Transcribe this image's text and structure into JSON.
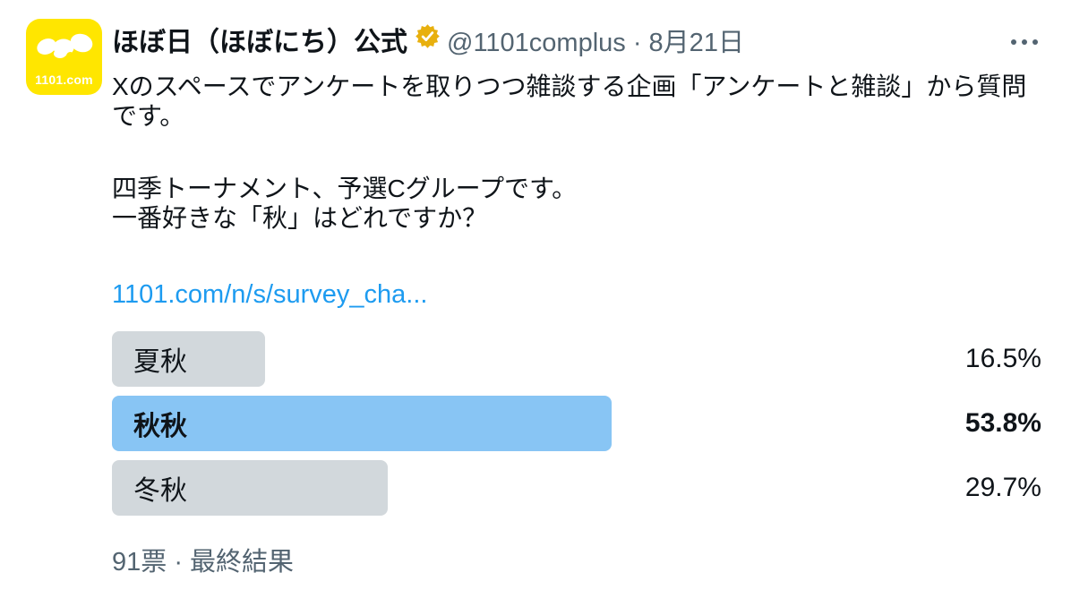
{
  "colors": {
    "background": "#ffffff",
    "text_primary": "#0f1419",
    "text_secondary": "#536471",
    "link_blue": "#1d9bf0",
    "poll_winner_blue": "#88C5F4",
    "poll_bar_gray": "#D2D8DC",
    "avatar_yellow": "#FFE600",
    "badge_gold": "#E8B00E"
  },
  "avatar": {
    "caption": "1101.com"
  },
  "header": {
    "display_name": "ほぼ日（ほぼにち）公式",
    "badge_icon": "gold-verified-icon",
    "handle_and_date": "@1101complus · 8月21日"
  },
  "tweet": {
    "paragraph1": "Xのスペースでアンケートを取りつつ雑談する企画「アンケートと雑談」から質問です。",
    "paragraph2_line1": "四季トーナメント、予選Cグループです。",
    "paragraph2_line2": "一番好きな「秋」はどれですか？",
    "link_text": "1101.com/n/s/survey_cha..."
  },
  "poll": {
    "options": [
      {
        "label": "夏秋",
        "percent_label": "16.5%",
        "percent_value": 16.5,
        "winner": false
      },
      {
        "label": "秋秋",
        "percent_label": "53.8%",
        "percent_value": 53.8,
        "winner": true
      },
      {
        "label": "冬秋",
        "percent_label": "29.7%",
        "percent_value": 29.7,
        "winner": false
      }
    ],
    "footer": "91票 · 最終結果"
  },
  "chart_data": {
    "type": "bar",
    "categories": [
      "夏秋",
      "秋秋",
      "冬秋"
    ],
    "values": [
      16.5,
      53.8,
      29.7
    ],
    "title": "一番好きな「秋」はどれですか？",
    "unit": "%",
    "total_votes_label": "91票",
    "status_label": "最終結果",
    "legend_position": "none",
    "grid": false
  }
}
